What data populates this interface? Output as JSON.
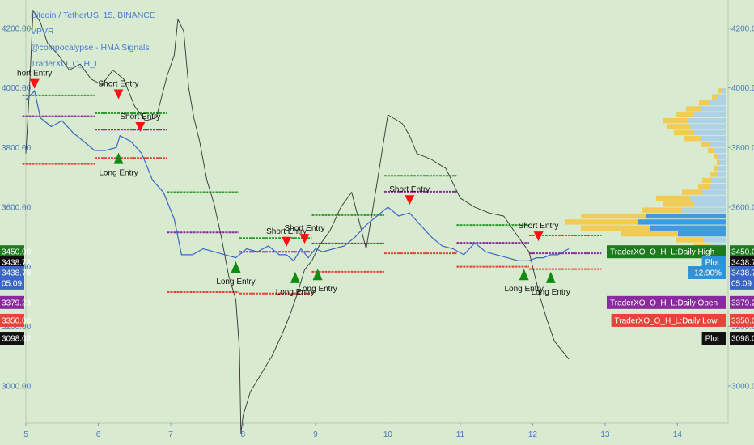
{
  "header": {
    "symbol_line": "Bitcoin / TetherUS, 15, BINANCE",
    "studies": [
      "VPVR",
      "@coinpocalypse - HMA Signals",
      "TraderXO_O_H_L"
    ]
  },
  "colors": {
    "background": "#d8ebd0",
    "price_line": "#3a66c9",
    "plot_line": "#333333",
    "daily_high": "#2e9a2e",
    "daily_open": "#8a2a9e",
    "daily_low": "#e8423a",
    "short_arrow": "#ff1010",
    "long_arrow": "#118a11",
    "vp_up": "#f2c94c",
    "vp_down": "#a9cfe8",
    "vp_down_strong": "#2f93d8"
  },
  "chart_data": {
    "type": "line",
    "symbol": "Bitcoin / TetherUS",
    "interval": "15",
    "exchange": "BINANCE",
    "x_ticks": [
      "5",
      "6",
      "7",
      "8",
      "9",
      "10",
      "11",
      "12",
      "13",
      "14"
    ],
    "x_range": [
      5,
      14.7
    ],
    "y_ticks": [
      3000,
      3200,
      3400,
      3600,
      3800,
      4000,
      4200
    ],
    "y_tick_labels": [
      "3000.00",
      "3200.00",
      "3400.00",
      "3600.00",
      "3800.00",
      "4000.00",
      "4200.00"
    ],
    "y_range": [
      2875,
      4295
    ],
    "series": [
      {
        "name": "",
        "x": [
          5.0,
          5.12,
          5.2,
          5.35,
          5.5,
          5.65,
          5.8,
          5.95,
          6.1,
          6.25,
          6.3,
          6.45,
          6.6,
          6.75,
          6.9,
          7.05,
          7.15,
          7.3,
          7.45,
          7.6,
          7.75,
          7.9,
          8.05,
          8.2,
          8.35,
          8.5,
          8.6,
          8.7,
          8.8,
          8.9,
          9.0,
          9.1,
          9.25,
          9.4,
          9.55,
          9.7,
          9.85,
          10.0,
          10.15,
          10.3,
          10.45,
          10.6,
          10.75,
          10.9,
          11.05,
          11.2,
          11.35,
          11.5,
          11.65,
          11.8,
          11.95,
          12.05,
          12.15,
          12.25,
          12.35,
          12.5
        ],
        "y": [
          3960,
          3990,
          3900,
          3870,
          3890,
          3850,
          3820,
          3790,
          3790,
          3800,
          3840,
          3820,
          3780,
          3690,
          3650,
          3560,
          3440,
          3440,
          3460,
          3450,
          3440,
          3430,
          3460,
          3450,
          3470,
          3440,
          3440,
          3420,
          3460,
          3430,
          3460,
          3450,
          3460,
          3470,
          3500,
          3540,
          3570,
          3600,
          3570,
          3580,
          3540,
          3500,
          3470,
          3460,
          3440,
          3480,
          3450,
          3440,
          3430,
          3420,
          3420,
          3430,
          3430,
          3440,
          3440,
          3460
        ]
      },
      {
        "name": "Plot",
        "x": [
          5.0,
          5.05,
          5.1,
          5.2,
          5.3,
          5.45,
          5.6,
          5.75,
          5.9,
          6.05,
          6.2,
          6.35,
          6.5,
          6.65,
          6.8,
          6.95,
          7.05,
          7.1,
          7.18,
          7.25,
          7.32,
          7.4,
          7.5,
          7.6,
          7.7,
          7.8,
          7.9,
          7.95,
          7.97,
          8.0,
          8.1,
          8.25,
          8.4,
          8.55,
          8.65,
          8.75,
          8.85,
          8.95,
          9.05,
          9.2,
          9.35,
          9.5,
          9.7,
          9.85,
          10.0,
          10.2,
          10.3,
          10.4,
          10.6,
          10.8,
          11.0,
          11.2,
          11.4,
          11.6,
          11.8,
          11.95,
          12.1,
          12.2,
          12.3,
          12.5
        ],
        "y": [
          3780,
          4000,
          4260,
          4220,
          4150,
          4110,
          4060,
          4080,
          4030,
          4010,
          4060,
          4030,
          3940,
          3890,
          3900,
          4040,
          4110,
          4230,
          4190,
          4000,
          3900,
          3820,
          3690,
          3610,
          3500,
          3370,
          3290,
          3120,
          2840,
          2900,
          2980,
          3040,
          3100,
          3180,
          3240,
          3310,
          3390,
          3420,
          3470,
          3520,
          3600,
          3650,
          3460,
          3680,
          3910,
          3880,
          3840,
          3780,
          3760,
          3730,
          3630,
          3600,
          3580,
          3570,
          3500,
          3450,
          3300,
          3220,
          3150,
          3090
        ]
      }
    ],
    "daily_levels": [
      {
        "day": 5,
        "open": 3905,
        "high": 3975,
        "low": 3745
      },
      {
        "day": 6,
        "open": 3860,
        "high": 3915,
        "low": 3765
      },
      {
        "day": 7,
        "open": 3515,
        "high": 3650,
        "low": 3315
      },
      {
        "day": 8,
        "open": 3450,
        "high": 3496,
        "low": 3310
      },
      {
        "day": 9,
        "open": 3478,
        "high": 3573,
        "low": 3383
      },
      {
        "day": 10,
        "open": 3652,
        "high": 3705,
        "low": 3445
      },
      {
        "day": 11,
        "open": 3480,
        "high": 3540,
        "low": 3400
      },
      {
        "day": 12,
        "open": 3445,
        "high": 3505,
        "low": 3392
      }
    ],
    "signals": [
      {
        "type": "short",
        "label": "hort Entry",
        "x": 5.12,
        "y": 4030
      },
      {
        "type": "short",
        "label": "Short Entry",
        "x": 6.28,
        "y": 3995
      },
      {
        "type": "short",
        "label": "Short Entry",
        "x": 6.58,
        "y": 3885
      },
      {
        "type": "long",
        "label": "Long Entry",
        "x": 6.28,
        "y": 3745
      },
      {
        "type": "long",
        "label": "Long Entry",
        "x": 7.9,
        "y": 3380
      },
      {
        "type": "short",
        "label": "Short Entry",
        "x": 8.6,
        "y": 3500
      },
      {
        "type": "short",
        "label": "Short Entry",
        "x": 8.85,
        "y": 3510
      },
      {
        "type": "long",
        "label": "Long Entry",
        "x": 8.72,
        "y": 3345
      },
      {
        "type": "long",
        "label": "Long Entry",
        "x": 9.03,
        "y": 3355
      },
      {
        "type": "short",
        "label": "Short Entry",
        "x": 10.3,
        "y": 3640
      },
      {
        "type": "short",
        "label": "Short Entry",
        "x": 12.08,
        "y": 3518
      },
      {
        "type": "long",
        "label": "Long Entry",
        "x": 11.88,
        "y": 3355
      },
      {
        "type": "long",
        "label": "Long Entry",
        "x": 12.25,
        "y": 3345
      }
    ],
    "volume_profile": {
      "price_start": 3360,
      "price_step": 20,
      "up": [
        8,
        5,
        6,
        12,
        18,
        22,
        35,
        70,
        85,
        90,
        80,
        50,
        38,
        42,
        25,
        15,
        12,
        8,
        6,
        4,
        5,
        8,
        12,
        20,
        25,
        28,
        30,
        22,
        18,
        12,
        6,
        4
      ],
      "down": [
        5,
        4,
        5,
        10,
        14,
        20,
        28,
        60,
        95,
        110,
        100,
        55,
        40,
        45,
        30,
        20,
        18,
        12,
        10,
        8,
        10,
        15,
        20,
        32,
        40,
        45,
        48,
        40,
        32,
        22,
        12,
        6
      ],
      "strong_rows": [
        7,
        8,
        9,
        10
      ]
    },
    "price_tags_left": [
      {
        "text": "3450.00",
        "y": 3450,
        "color": "#1d7a1d"
      },
      {
        "text": "3438.78",
        "y": 3415,
        "color": "#111111"
      },
      {
        "text": "3438.78",
        "y": 3380,
        "color": "#3a66c9"
      },
      {
        "text": "05:09",
        "y": 3345,
        "color": "#3a66c9"
      },
      {
        "text": "3379.23",
        "y": 3280,
        "color": "#8a2a9e"
      },
      {
        "text": "3350.00",
        "y": 3220,
        "color": "#e8423a"
      },
      {
        "text": "3098.02",
        "y": 3160,
        "color": "#111111"
      }
    ],
    "price_tags_right": [
      {
        "text": "3450.00",
        "y": 3450,
        "color": "#1d7a1d"
      },
      {
        "text": "3438.78",
        "y": 3415,
        "color": "#111111"
      },
      {
        "text": "3438.78",
        "y": 3380,
        "color": "#3a66c9"
      },
      {
        "text": "05:09",
        "y": 3345,
        "color": "#3a66c9"
      },
      {
        "text": "3379.23",
        "y": 3280,
        "color": "#8a2a9e"
      },
      {
        "text": "3350.00",
        "y": 3220,
        "color": "#e8423a"
      },
      {
        "text": "3098.02",
        "y": 3160,
        "color": "#111111"
      }
    ],
    "indicator_labels": [
      {
        "text": "TraderXO_O_H_L:Daily High",
        "y": 3450,
        "color": "#1d7a1d"
      },
      {
        "text": "Plot",
        "y": 3415,
        "color": "#2f93d8"
      },
      {
        "text": "-12.90%",
        "y": 3380,
        "color": "#2f93d8"
      },
      {
        "text": "TraderXO_O_H_L:Daily Open",
        "y": 3280,
        "color": "#8a2a9e"
      },
      {
        "text": "TraderXO_O_H_L:Daily Low",
        "y": 3220,
        "color": "#e8423a"
      },
      {
        "text": "Plot",
        "y": 3160,
        "color": "#111111"
      }
    ]
  }
}
